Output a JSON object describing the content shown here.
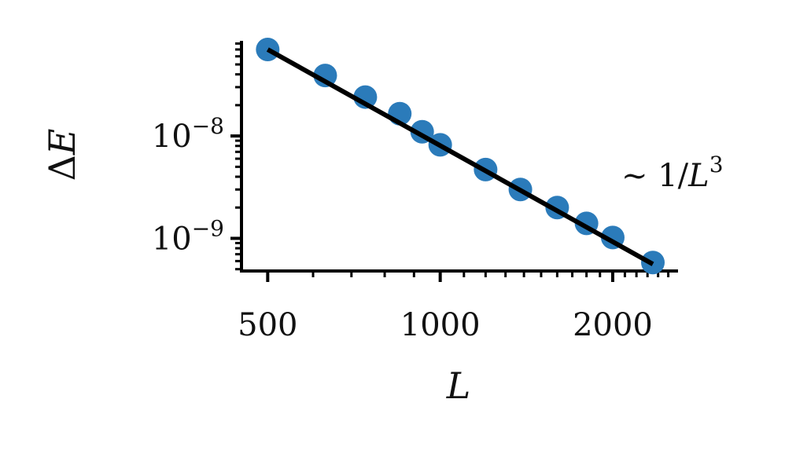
{
  "chart_data": {
    "type": "scatter",
    "xlabel_symbol": "L",
    "ylabel_prefix": "Δ",
    "ylabel_symbol": "E",
    "x_scale": "log",
    "y_scale": "log",
    "xlim": [
      450,
      2600
    ],
    "ylim": [
      4.8e-10,
      8.5e-08
    ],
    "x_ticks": [
      {
        "value": 500,
        "label": "500"
      },
      {
        "value": 1000,
        "label": "1000"
      },
      {
        "value": 2000,
        "label": "2000"
      }
    ],
    "y_ticks": [
      {
        "value": 1e-08,
        "base": "10",
        "exp": "−8"
      },
      {
        "value": 1e-09,
        "base": "10",
        "exp": "−9"
      }
    ],
    "series": [
      {
        "color": "#2b7bba",
        "x": [
          500,
          630,
          740,
          850,
          930,
          1000,
          1200,
          1380,
          1600,
          1800,
          2000,
          2350
        ],
        "y": [
          7e-08,
          3.9e-08,
          2.4e-08,
          1.65e-08,
          1.1e-08,
          8.2e-09,
          4.7e-09,
          3e-09,
          2e-09,
          1.4e-09,
          1.02e-09,
          5.8e-10
        ]
      }
    ],
    "fit_line": {
      "color": "#000000",
      "x": [
        500,
        2350
      ],
      "y": [
        7e-08,
        5.6e-10
      ]
    },
    "annotation": {
      "prefix": "~ 1/",
      "symbol": "L",
      "exp": "3"
    },
    "grid": false
  }
}
